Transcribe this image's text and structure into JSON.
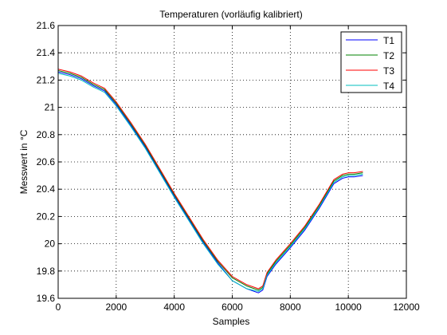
{
  "chart_data": {
    "type": "line",
    "title": "Temperaturen (vorläufig kalibriert)",
    "xlabel": "Samples",
    "ylabel": "Messwert in °C",
    "xlim": [
      0,
      12000
    ],
    "ylim": [
      19.6,
      21.6
    ],
    "xticks": [
      0,
      2000,
      4000,
      6000,
      8000,
      10000,
      12000
    ],
    "xtick_labels": [
      "0",
      "2000",
      "4000",
      "6000",
      "8000",
      "10000",
      "12000"
    ],
    "yticks": [
      19.6,
      19.8,
      20,
      20.2,
      20.4,
      20.6,
      20.8,
      21,
      21.2,
      21.4,
      21.6
    ],
    "ytick_labels": [
      "19.6",
      "19.8",
      "20",
      "20.2",
      "20.4",
      "20.6",
      "20.8",
      "21",
      "21.2",
      "21.4",
      "21.6"
    ],
    "grid": true,
    "legend_position": "top-right",
    "series": [
      {
        "name": "T1",
        "color": "#0000ff",
        "x": [
          0,
          400,
          800,
          1200,
          1600,
          2000,
          2500,
          3000,
          3500,
          4000,
          4500,
          5000,
          5500,
          6000,
          6500,
          6900,
          7050,
          7200,
          7500,
          8000,
          8500,
          9000,
          9500,
          9800,
          10000,
          10200,
          10500
        ],
        "values": [
          21.26,
          21.24,
          21.21,
          21.16,
          21.12,
          21.02,
          20.87,
          20.71,
          20.53,
          20.35,
          20.18,
          20.01,
          19.86,
          19.73,
          19.67,
          19.64,
          19.66,
          19.76,
          19.85,
          19.97,
          20.1,
          20.26,
          20.44,
          20.48,
          20.49,
          20.49,
          20.5
        ]
      },
      {
        "name": "T2",
        "color": "#008000",
        "x": [
          0,
          400,
          800,
          1200,
          1600,
          2000,
          2500,
          3000,
          3500,
          4000,
          4500,
          5000,
          5500,
          6000,
          6500,
          6900,
          7050,
          7200,
          7500,
          8000,
          8500,
          9000,
          9500,
          9800,
          10000,
          10200,
          10500
        ],
        "values": [
          21.27,
          21.25,
          21.22,
          21.17,
          21.13,
          21.03,
          20.88,
          20.72,
          20.54,
          20.36,
          20.19,
          20.02,
          19.87,
          19.75,
          19.69,
          19.66,
          19.68,
          19.78,
          19.87,
          19.99,
          20.12,
          20.28,
          20.46,
          20.5,
          20.51,
          20.51,
          20.52
        ]
      },
      {
        "name": "T3",
        "color": "#ff0000",
        "x": [
          0,
          400,
          800,
          1200,
          1600,
          2000,
          2500,
          3000,
          3500,
          4000,
          4500,
          5000,
          5500,
          6000,
          6500,
          6900,
          7050,
          7200,
          7500,
          8000,
          8500,
          9000,
          9500,
          9800,
          10000,
          10200,
          10500
        ],
        "values": [
          21.28,
          21.26,
          21.23,
          21.18,
          21.14,
          21.04,
          20.89,
          20.73,
          20.55,
          20.37,
          20.2,
          20.03,
          19.88,
          19.76,
          19.7,
          19.67,
          19.69,
          19.79,
          19.88,
          20.0,
          20.13,
          20.29,
          20.47,
          20.51,
          20.52,
          20.52,
          20.53
        ]
      },
      {
        "name": "T4",
        "color": "#00bfbf",
        "x": [
          0,
          400,
          800,
          1200,
          1600,
          2000,
          2500,
          3000,
          3500,
          4000,
          4500,
          5000,
          5500,
          6000,
          6500,
          6900,
          7050,
          7200,
          7500,
          8000,
          8500,
          9000,
          9500,
          9800,
          10000,
          10200,
          10500
        ],
        "values": [
          21.25,
          21.23,
          21.2,
          21.15,
          21.11,
          21.01,
          20.86,
          20.7,
          20.52,
          20.34,
          20.17,
          20.0,
          19.85,
          19.73,
          19.67,
          19.65,
          19.67,
          19.77,
          19.86,
          19.98,
          20.11,
          20.27,
          20.45,
          20.49,
          20.5,
          20.5,
          20.51
        ]
      }
    ]
  }
}
